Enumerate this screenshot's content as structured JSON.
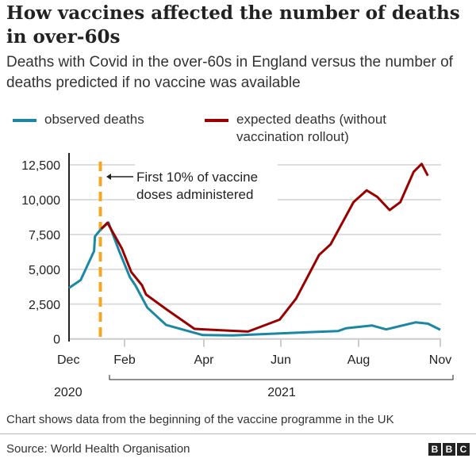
{
  "title": "How vaccines affected the number of deaths in over-60s",
  "subtitle": "Deaths with Covid in the over-60s in England versus the number of deaths predicted if no vaccine was available",
  "footnote": "Chart shows data from the beginning of the vaccine programme in the UK",
  "source": "Source: World Health Organisation",
  "logo": "BBC",
  "chart_data": {
    "type": "line",
    "ylim": [
      0,
      12500
    ],
    "yticks": [
      0,
      2500,
      5000,
      7500,
      10000,
      12500
    ],
    "ytick_labels": [
      "0",
      "2,500",
      "5,000",
      "7,500",
      "10,000",
      "12,500"
    ],
    "xticks": [
      "2020-12-01",
      "2021-02-01",
      "2021-04-01",
      "2021-06-01",
      "2021-08-01",
      "2021-11-01"
    ],
    "xtick_labels": [
      "Dec",
      "Feb",
      "Apr",
      "Jun",
      "Aug",
      "Nov"
    ],
    "year_labels": [
      "2020",
      "2021"
    ],
    "grid": true,
    "legend_position": "top",
    "annotation": {
      "date": "2021-01-05",
      "text_lines": [
        "First 10% of vaccine",
        "doses administered"
      ],
      "color": "#f5a623"
    },
    "series": [
      {
        "name": "observed deaths",
        "color": "#1b87a3",
        "x": [
          "2020-12-01",
          "2020-12-14",
          "2020-12-29",
          "2020-12-30",
          "2021-01-05",
          "2021-01-14",
          "2021-01-26",
          "2021-02-05",
          "2021-02-09",
          "2021-02-18",
          "2021-03-04",
          "2021-03-31",
          "2021-04-24",
          "2021-05-31",
          "2021-07-16",
          "2021-07-22",
          "2021-08-16",
          "2021-09-01",
          "2021-10-04",
          "2021-10-18",
          "2021-11-01"
        ],
        "y": [
          3660,
          4230,
          6310,
          7360,
          7830,
          8360,
          6310,
          4420,
          3850,
          2240,
          1000,
          280,
          250,
          400,
          570,
          760,
          970,
          680,
          1190,
          1100,
          660
        ]
      },
      {
        "name": "expected deaths (without vaccination rollout)",
        "legend_lines": [
          "expected deaths (without",
          "vaccination rollout)"
        ],
        "color": "#990000",
        "x": [
          "2021-01-06",
          "2021-01-13",
          "2021-01-29",
          "2021-02-06",
          "2021-02-14",
          "2021-02-17",
          "2021-03-04",
          "2021-03-25",
          "2021-04-13",
          "2021-05-06",
          "2021-05-31",
          "2021-06-13",
          "2021-06-25",
          "2021-07-01",
          "2021-07-10",
          "2021-07-28",
          "2021-08-10",
          "2021-08-22",
          "2021-09-05",
          "2021-09-17",
          "2021-10-02",
          "2021-10-11",
          "2021-10-18"
        ],
        "y": [
          7900,
          8340,
          6500,
          4800,
          3850,
          3190,
          2140,
          720,
          630,
          530,
          1380,
          2900,
          4990,
          6030,
          6790,
          9820,
          10670,
          10200,
          9250,
          9820,
          12000,
          12570,
          11720
        ]
      }
    ]
  }
}
